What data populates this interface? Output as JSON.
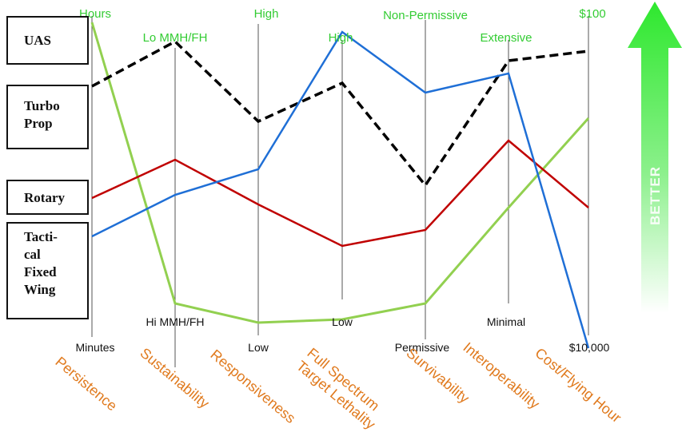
{
  "legend": {
    "uas": "UAS",
    "turboprop": "Turbo\nProp",
    "rotary": "Rotary",
    "tactical": "Tacti-\ncal\nFixed\nWing"
  },
  "better_label": "BETTER",
  "colors": {
    "green_text": "#33cc33",
    "orange_text": "#e07a1e",
    "uas_series": "#92d050",
    "turboprop_series": "#000000",
    "rotary_series": "#c00000",
    "tactical_series": "#1f6fd6",
    "arrow": "#33ee33"
  },
  "chart_data": {
    "type": "line",
    "title": "",
    "y_direction": "up is better",
    "categories": [
      "Persistence",
      "Sustainability",
      "Responsiveness",
      "Full Spectrum\nTarget Lethality",
      "Survivability",
      "Interoperability",
      "Cost/Flying Hour"
    ],
    "axis_top_labels": [
      "Hours",
      "Lo MMH/FH",
      "High",
      "High",
      "Non-Permissive",
      "Extensive",
      "$100"
    ],
    "axis_bottom_labels": [
      "Minutes",
      "Hi MMH/FH",
      "Low",
      "Low",
      "Permissive",
      "Minimal",
      "$10,000"
    ],
    "ylim": [
      0,
      100
    ],
    "series": [
      {
        "name": "UAS",
        "values": [
          98,
          10,
          4,
          5,
          10,
          40,
          68
        ]
      },
      {
        "name": "Turbo Prop",
        "values": [
          78,
          92,
          67,
          79,
          47,
          86,
          89
        ]
      },
      {
        "name": "Rotary",
        "values": [
          43,
          55,
          41,
          28,
          33,
          61,
          40
        ]
      },
      {
        "name": "Tactical Fixed Wing",
        "values": [
          31,
          44,
          52,
          95,
          76,
          82,
          -4
        ]
      }
    ]
  }
}
